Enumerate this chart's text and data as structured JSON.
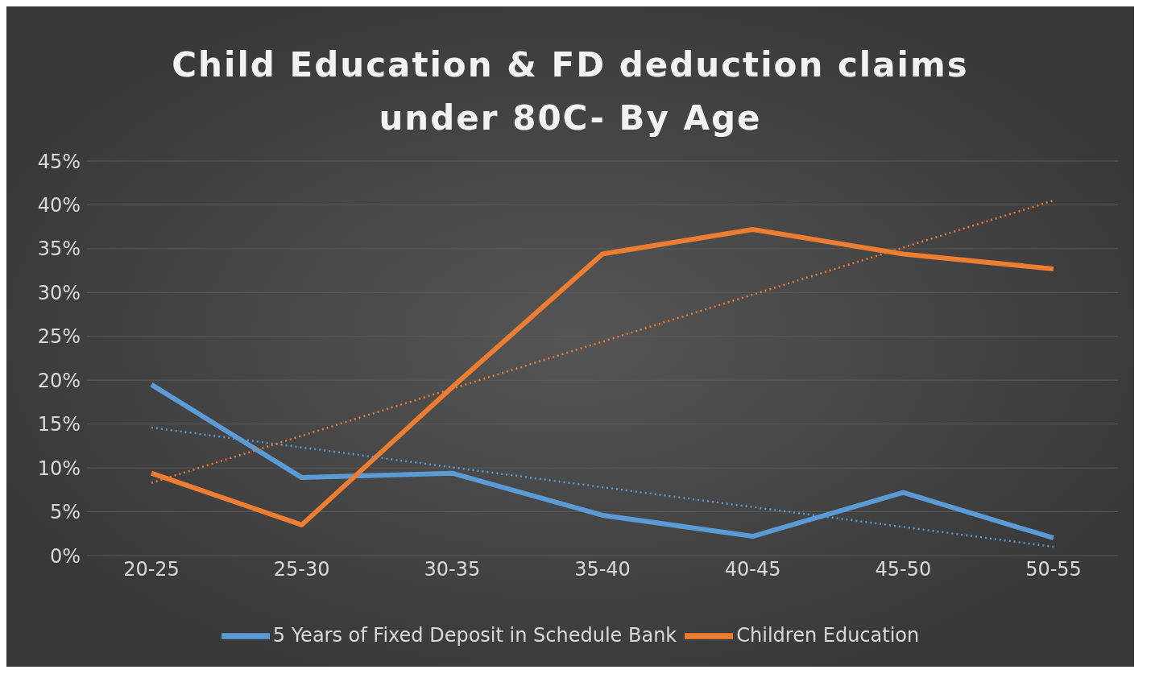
{
  "chart_data": {
    "type": "line",
    "title": "Child Education & FD deduction claims under 80C- By Age",
    "categories": [
      "20-25",
      "25-30",
      "30-35",
      "35-40",
      "40-45",
      "45-50",
      "50-55"
    ],
    "series": [
      {
        "name": "5 Years of Fixed Deposit in Schedule Bank",
        "color": "#5b9bd5",
        "values": [
          19.5,
          8.9,
          9.4,
          4.6,
          2.2,
          7.2,
          2.0
        ]
      },
      {
        "name": "Children Education",
        "color": "#ed7d31",
        "values": [
          9.4,
          3.5,
          19.2,
          34.4,
          37.2,
          34.4,
          32.7
        ]
      },
      {
        "type": "line",
        "color": "#5b9bd5",
        "line_style": "dotted",
        "x": [
          "20-25",
          "50-55"
        ],
        "values": [
          14.6,
          1.0
        ]
      },
      {
        "type": "line",
        "color": "#ed7d31",
        "line_style": "dotted",
        "x": [
          "20-25",
          "50-55"
        ],
        "values": [
          8.3,
          40.5
        ]
      }
    ],
    "ylim": [
      0,
      45
    ],
    "yticks": [
      {
        "value": 0,
        "label": "0%"
      },
      {
        "value": 5,
        "label": "5%"
      },
      {
        "value": 10,
        "label": "10%"
      },
      {
        "value": 15,
        "label": "15%"
      },
      {
        "value": 20,
        "label": "20%"
      },
      {
        "value": 25,
        "label": "25%"
      },
      {
        "value": 30,
        "label": "30%"
      },
      {
        "value": 35,
        "label": "35%"
      },
      {
        "value": 40,
        "label": "40%"
      },
      {
        "value": 45,
        "label": "45%"
      }
    ],
    "grid": "y",
    "legend": "bottom"
  }
}
